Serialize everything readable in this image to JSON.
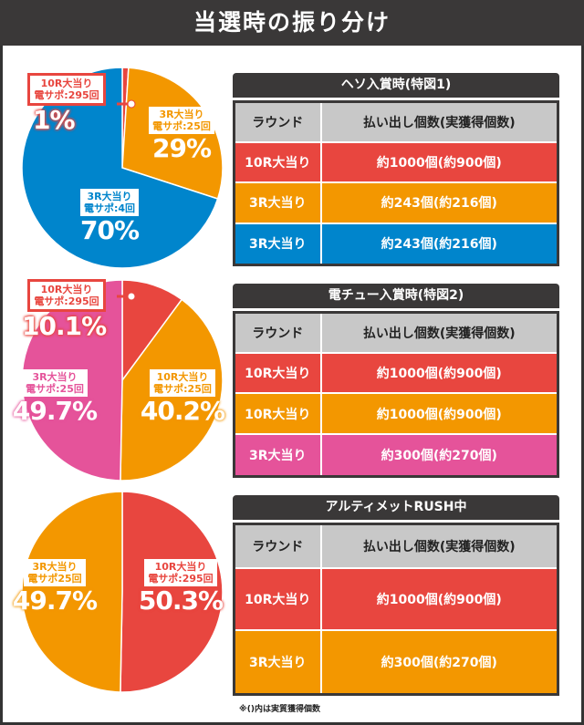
{
  "title": "当選時の振り分け",
  "colors": {
    "red": "#e8463f",
    "orange": "#f39700",
    "blue": "#0085cc",
    "pink": "#e5539a"
  },
  "chart_data": [
    {
      "type": "pie",
      "slices": [
        {
          "label": "10R大当り",
          "sub": "電サポ:295回",
          "value": 1,
          "pct": "1%",
          "color": "#e8463f"
        },
        {
          "label": "3R大当り",
          "sub": "電サポ:25回",
          "value": 29,
          "pct": "29%",
          "color": "#f39700"
        },
        {
          "label": "3R大当り",
          "sub": "電サポ:4回",
          "value": 70,
          "pct": "70%",
          "color": "#0085cc"
        }
      ]
    },
    {
      "type": "pie",
      "slices": [
        {
          "label": "10R大当り",
          "sub": "電サポ:295回",
          "value": 10.1,
          "pct": "10.1%",
          "color": "#e8463f"
        },
        {
          "label": "10R大当り",
          "sub": "電サポ:25回",
          "value": 40.2,
          "pct": "40.2%",
          "color": "#f39700"
        },
        {
          "label": "3R大当り",
          "sub": "電サポ:25回",
          "value": 49.7,
          "pct": "49.7%",
          "color": "#e5539a"
        }
      ]
    },
    {
      "type": "pie",
      "slices": [
        {
          "label": "10R大当り",
          "sub": "電サポ:295回",
          "value": 50.3,
          "pct": "50.3%",
          "color": "#e8463f"
        },
        {
          "label": "3R大当り",
          "sub": "電サポ25回",
          "value": 49.7,
          "pct": "49.7%",
          "color": "#f39700"
        }
      ]
    }
  ],
  "tables": [
    {
      "title": "ヘソ入賞時(特図1)",
      "headers": [
        "ラウンド",
        "払い出し個数(実獲得個数)"
      ],
      "rows": [
        [
          "10R大当り",
          "約1000個(約900個)"
        ],
        [
          "3R大当り",
          "約243個(約216個)"
        ],
        [
          "3R大当り",
          "約243個(約216個)"
        ]
      ]
    },
    {
      "title": "電チュー入賞時(特図2)",
      "headers": [
        "ラウンド",
        "払い出し個数(実獲得個数)"
      ],
      "rows": [
        [
          "10R大当り",
          "約1000個(約900個)"
        ],
        [
          "10R大当り",
          "約1000個(約900個)"
        ],
        [
          "3R大当り",
          "約300個(約270個)"
        ]
      ]
    },
    {
      "title": "アルティメットRUSH中",
      "headers": [
        "ラウンド",
        "払い出し個数(実獲得個数)"
      ],
      "rows": [
        [
          "10R大当り",
          "約1000個(約900個)"
        ],
        [
          "3R大当り",
          "約300個(約270個)"
        ]
      ]
    }
  ],
  "footnote": "※()内は実質獲得個数"
}
